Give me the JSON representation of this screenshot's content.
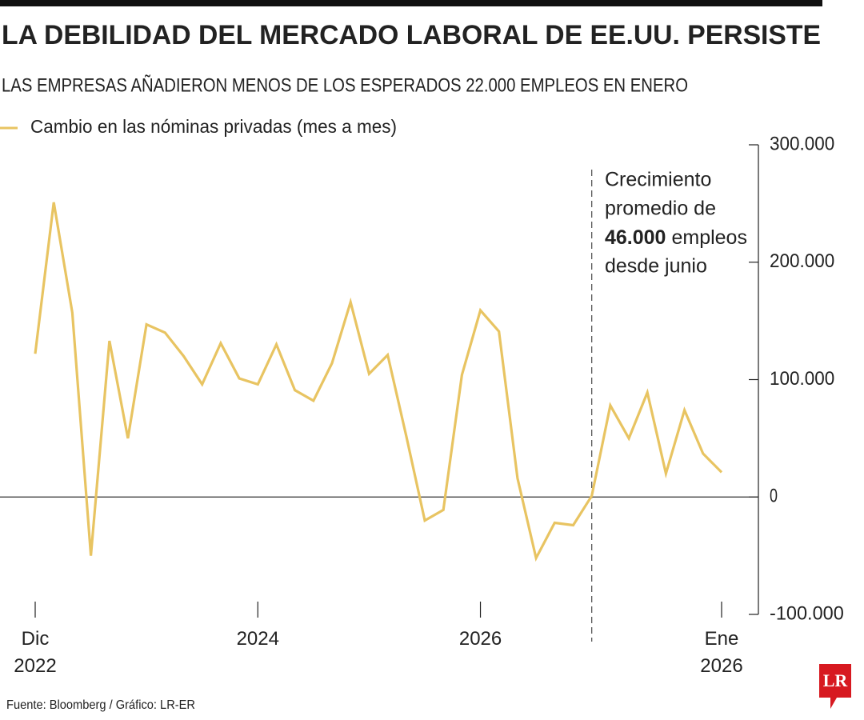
{
  "title": "LA DEBILIDAD DEL MERCADO LABORAL DE EE.UU. PERSISTE",
  "subtitle": "LAS EMPRESAS AÑADIERON MENOS DE LOS ESPERADOS 22.000 EMPLEOS EN ENERO",
  "source": "Fuente: Bloomberg / Gráfico: LR-ER",
  "logo": "LR",
  "chart_data": {
    "type": "line",
    "categories": [
      "Dic 2022",
      null,
      null,
      null,
      null,
      null,
      null,
      null,
      null,
      null,
      null,
      null,
      "2024",
      null,
      null,
      null,
      null,
      null,
      null,
      null,
      null,
      null,
      null,
      null,
      "2026",
      null,
      null,
      null,
      null,
      null,
      null,
      null,
      null,
      null,
      null,
      null,
      null,
      "Ene 2026"
    ],
    "series": [
      {
        "name": "Cambio en las nóminas privadas (mes a mes)",
        "color": "#e8c462",
        "values": [
          122000,
          251000,
          157000,
          -50000,
          133000,
          50000,
          147000,
          140000,
          120000,
          96000,
          131000,
          101000,
          96000,
          130000,
          91000,
          82000,
          114000,
          166000,
          105000,
          121000,
          52000,
          -20000,
          -11000,
          104000,
          159000,
          141000,
          16000,
          -52000,
          -22000,
          -24000,
          1000,
          78000,
          50000,
          89000,
          20000,
          74000,
          37000,
          21000
        ]
      }
    ],
    "ylim": [
      -100000,
      300000
    ],
    "yticks": [
      {
        "value": -100000,
        "label": "-100.000"
      },
      0,
      {
        "value": 100000,
        "label": "100.000"
      },
      {
        "value": 200000,
        "label": "200.000"
      },
      {
        "value": 300000,
        "label": "300.000"
      }
    ],
    "annotation": {
      "lines": [
        "Crecimiento",
        "promedio de"
      ],
      "bold": "46.000",
      "after_bold": "empleos",
      "last": "desde junio"
    }
  }
}
